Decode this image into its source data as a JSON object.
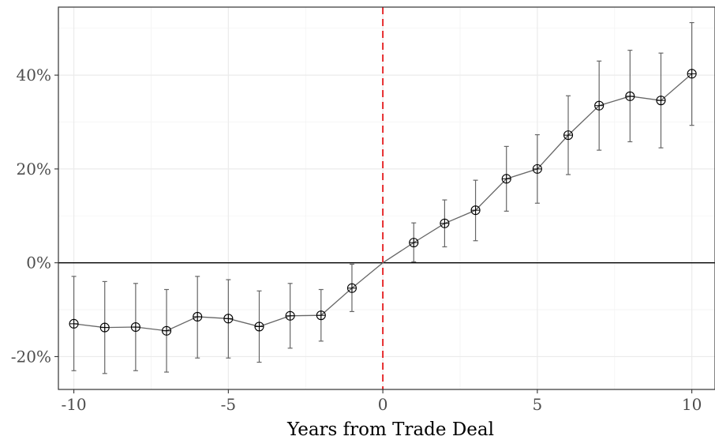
{
  "chart_data": {
    "type": "line",
    "title": "",
    "xlabel": "Years from Trade Deal",
    "ylabel": "",
    "xlim": [
      -10.5,
      10.75
    ],
    "ylim": [
      -27,
      54.5
    ],
    "x_ticks": [
      -10,
      -5,
      0,
      5,
      10
    ],
    "x_tick_labels": [
      "-10",
      "-5",
      "0",
      "5",
      "10"
    ],
    "y_ticks": [
      -20,
      0,
      20,
      40
    ],
    "y_tick_labels": [
      "-20%",
      "0%",
      "20%",
      "40%"
    ],
    "grid": true,
    "reference_lines": {
      "horizontal_y": 0,
      "vertical_x": 0,
      "vertical_style": "dashed",
      "vertical_color": "#e41a1c"
    },
    "series": [
      {
        "x": [
          -10,
          -9,
          -8,
          -7,
          -6,
          -5,
          -4,
          -3,
          -2,
          -1,
          0,
          1,
          2,
          3,
          4,
          5,
          6,
          7,
          8,
          9,
          10
        ],
        "y": [
          -13.0,
          -13.8,
          -13.7,
          -14.5,
          -11.5,
          -11.9,
          -13.6,
          -11.3,
          -11.2,
          -5.4,
          0.0,
          4.3,
          8.4,
          11.2,
          17.9,
          20.0,
          27.2,
          33.5,
          35.5,
          34.6,
          40.3
        ],
        "lower": [
          -23.0,
          -23.6,
          -23.0,
          -23.3,
          -20.3,
          -20.3,
          -21.2,
          -18.2,
          -16.7,
          -10.4,
          null,
          0.2,
          3.4,
          4.7,
          11.0,
          12.7,
          18.8,
          24.0,
          25.8,
          24.5,
          29.3
        ],
        "upper": [
          -2.9,
          -4.0,
          -4.4,
          -5.7,
          -2.9,
          -3.6,
          -6.0,
          -4.4,
          -5.7,
          -0.3,
          null,
          8.5,
          13.4,
          17.6,
          24.8,
          27.3,
          35.6,
          43.0,
          45.3,
          44.7,
          51.2
        ],
        "line_color": "#666666",
        "marker_color": "#000000"
      }
    ]
  }
}
